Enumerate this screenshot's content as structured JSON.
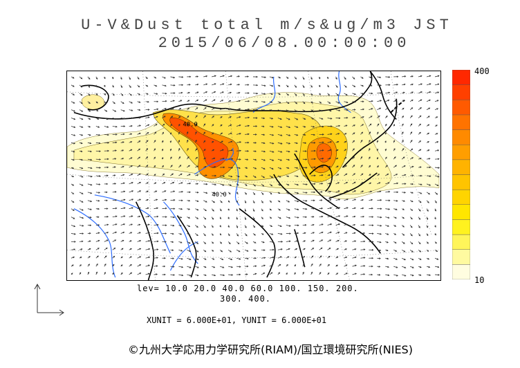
{
  "header": {
    "title_line1": "U-V&Dust total m/s&ug/m3 JST",
    "title_line2": "2015/06/08.00:00:00"
  },
  "colorbar": {
    "max_label": "400",
    "min_label": "10",
    "colors": [
      "#fffde0",
      "#fffaa0",
      "#fff55a",
      "#fff21f",
      "#ffe600",
      "#ffd400",
      "#ffc400",
      "#ffb300",
      "#ff9e00",
      "#ff8a00",
      "#ff7300",
      "#ff5a00",
      "#ff4000",
      "#ff2800"
    ]
  },
  "levels": {
    "line1": "lev= 10.0 20.0 40.0 60.0 100. 150. 200.",
    "line2": "300. 400."
  },
  "units": {
    "text": "XUNIT = 6.000E+01, YUNIT = 6.000E+01"
  },
  "contour_labels": [
    "40.0",
    "40.0"
  ],
  "copyright": "©九州大学応用力学研究所(RIAM)/国立環境研究所(NIES)",
  "colors": {
    "river": "#2a6bff",
    "coast": "#000000",
    "dust_low": "#fffcd2",
    "dust_mid": "#ffe14a",
    "dust_high": "#ff6a00",
    "dust_peak": "#ff3c00"
  }
}
